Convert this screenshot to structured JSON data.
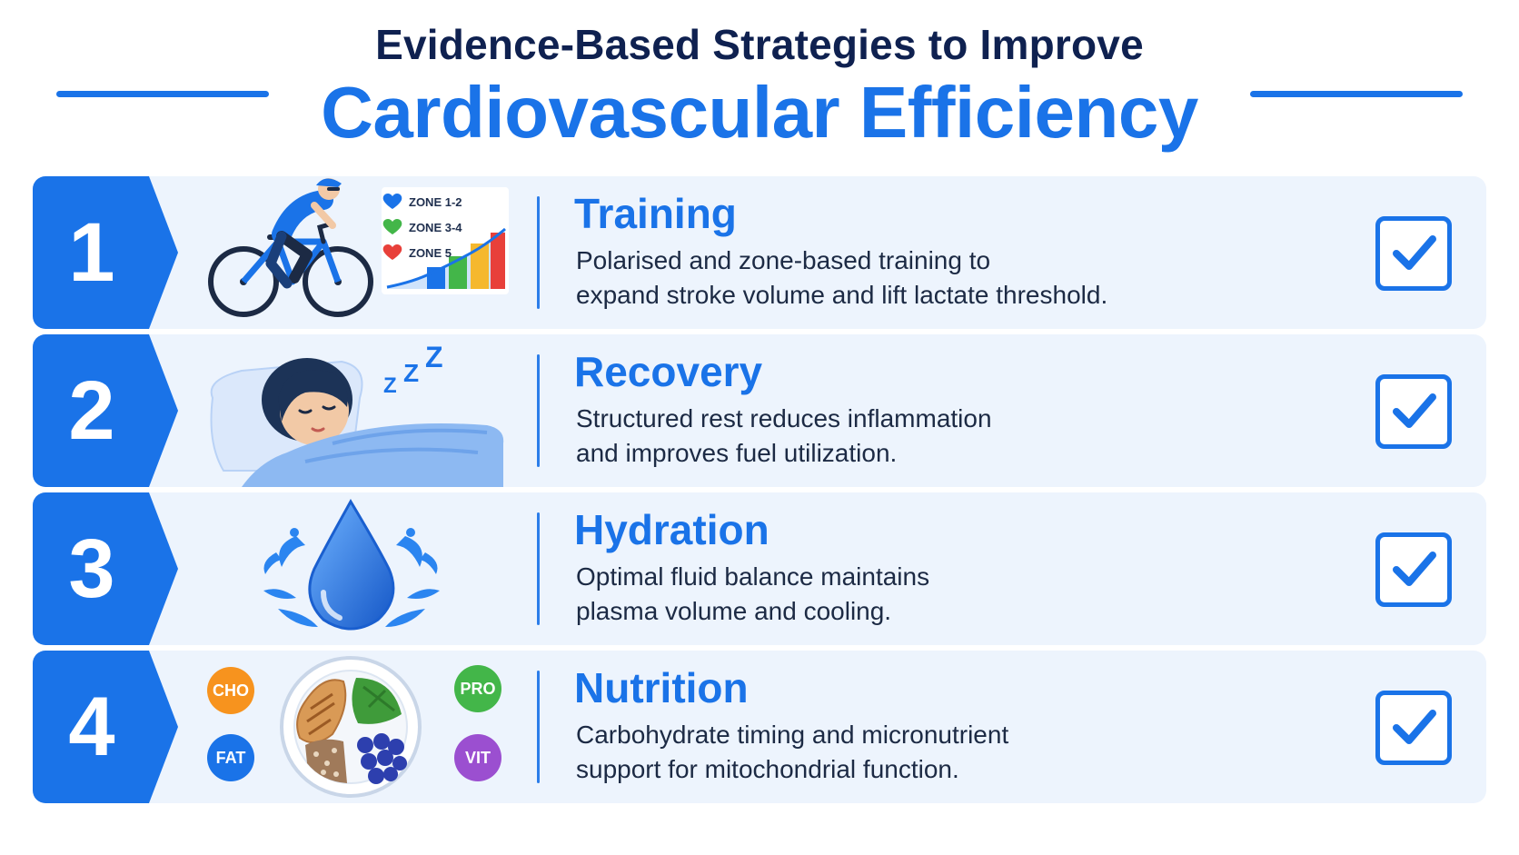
{
  "header": {
    "title_top": "Evidence-Based Strategies to Improve",
    "title_main": "Cardiovascular Efficiency"
  },
  "strategies": [
    {
      "number": "1",
      "title": "Training",
      "description_line1": "Polarised and zone-based training to",
      "description_line2": "expand stroke volume and lift lactate threshold.",
      "illustration": "cyclist-icon",
      "zones": [
        "ZONE 1-2",
        "ZONE 3-4",
        "ZONE 5"
      ],
      "zone_colors": [
        "#1a73e8",
        "#43b649",
        "#e8403a"
      ]
    },
    {
      "number": "2",
      "title": "Recovery",
      "description_line1": "Structured rest reduces inflammation",
      "description_line2": "and improves fuel utilization.",
      "illustration": "sleeping-person-icon",
      "sleep_text": "Z"
    },
    {
      "number": "3",
      "title": "Hydration",
      "description_line1": "Optimal fluid balance maintains",
      "description_line2": "plasma volume and cooling.",
      "illustration": "water-drop-icon"
    },
    {
      "number": "4",
      "title": "Nutrition",
      "description_line1": "Carbohydrate timing and micronutrient",
      "description_line2": "support for mitochondrial function.",
      "illustration": "food-plate-icon",
      "macros": [
        "CHO",
        "PRO",
        "FAT",
        "VIT"
      ],
      "macro_colors": [
        "#f7931e",
        "#43b649",
        "#1a73e8",
        "#9b4fd0"
      ]
    }
  ],
  "colors": {
    "accent": "#1a73e8",
    "navy": "#0f2150",
    "row_bg": "#edf4fd"
  }
}
